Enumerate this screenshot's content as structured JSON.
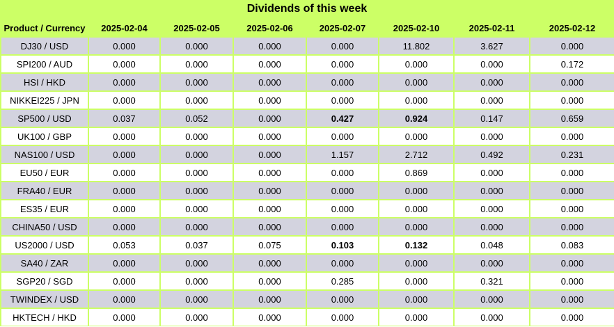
{
  "title": "Dividends of this week",
  "headers": [
    "Product / Currency",
    "2025-02-04",
    "2025-02-05",
    "2025-02-06",
    "2025-02-07",
    "2025-02-10",
    "2025-02-11",
    "2025-02-12"
  ],
  "rows": [
    {
      "product": "DJ30 / USD",
      "values": [
        "0.000",
        "0.000",
        "0.000",
        "0.000",
        "11.802",
        "3.627",
        "0.000"
      ],
      "bold": []
    },
    {
      "product": "SPI200 / AUD",
      "values": [
        "0.000",
        "0.000",
        "0.000",
        "0.000",
        "0.000",
        "0.000",
        "0.172"
      ],
      "bold": []
    },
    {
      "product": "HSI / HKD",
      "values": [
        "0.000",
        "0.000",
        "0.000",
        "0.000",
        "0.000",
        "0.000",
        "0.000"
      ],
      "bold": []
    },
    {
      "product": "NIKKEI225 / JPN",
      "values": [
        "0.000",
        "0.000",
        "0.000",
        "0.000",
        "0.000",
        "0.000",
        "0.000"
      ],
      "bold": []
    },
    {
      "product": "SP500 / USD",
      "values": [
        "0.037",
        "0.052",
        "0.000",
        "0.427",
        "0.924",
        "0.147",
        "0.659"
      ],
      "bold": [
        3,
        4
      ]
    },
    {
      "product": "UK100 / GBP",
      "values": [
        "0.000",
        "0.000",
        "0.000",
        "0.000",
        "0.000",
        "0.000",
        "0.000"
      ],
      "bold": []
    },
    {
      "product": "NAS100 / USD",
      "values": [
        "0.000",
        "0.000",
        "0.000",
        "1.157",
        "2.712",
        "0.492",
        "0.231"
      ],
      "bold": []
    },
    {
      "product": "EU50 / EUR",
      "values": [
        "0.000",
        "0.000",
        "0.000",
        "0.000",
        "0.869",
        "0.000",
        "0.000"
      ],
      "bold": []
    },
    {
      "product": "FRA40 / EUR",
      "values": [
        "0.000",
        "0.000",
        "0.000",
        "0.000",
        "0.000",
        "0.000",
        "0.000"
      ],
      "bold": []
    },
    {
      "product": "ES35 / EUR",
      "values": [
        "0.000",
        "0.000",
        "0.000",
        "0.000",
        "0.000",
        "0.000",
        "0.000"
      ],
      "bold": []
    },
    {
      "product": "CHINA50 / USD",
      "values": [
        "0.000",
        "0.000",
        "0.000",
        "0.000",
        "0.000",
        "0.000",
        "0.000"
      ],
      "bold": []
    },
    {
      "product": "US2000 / USD",
      "values": [
        "0.053",
        "0.037",
        "0.075",
        "0.103",
        "0.132",
        "0.048",
        "0.083"
      ],
      "bold": [
        3,
        4
      ]
    },
    {
      "product": "SA40 / ZAR",
      "values": [
        "0.000",
        "0.000",
        "0.000",
        "0.000",
        "0.000",
        "0.000",
        "0.000"
      ],
      "bold": []
    },
    {
      "product": "SGP20 / SGD",
      "values": [
        "0.000",
        "0.000",
        "0.000",
        "0.285",
        "0.000",
        "0.321",
        "0.000"
      ],
      "bold": []
    },
    {
      "product": "TWINDEX / USD",
      "values": [
        "0.000",
        "0.000",
        "0.000",
        "0.000",
        "0.000",
        "0.000",
        "0.000"
      ],
      "bold": []
    },
    {
      "product": "HKTECH / HKD",
      "values": [
        "0.000",
        "0.000",
        "0.000",
        "0.000",
        "0.000",
        "0.000",
        "0.000"
      ],
      "bold": []
    }
  ],
  "colors": {
    "background": "#ccff66",
    "stripe_row": "#d3d3df",
    "plain_row": "#ffffff"
  }
}
